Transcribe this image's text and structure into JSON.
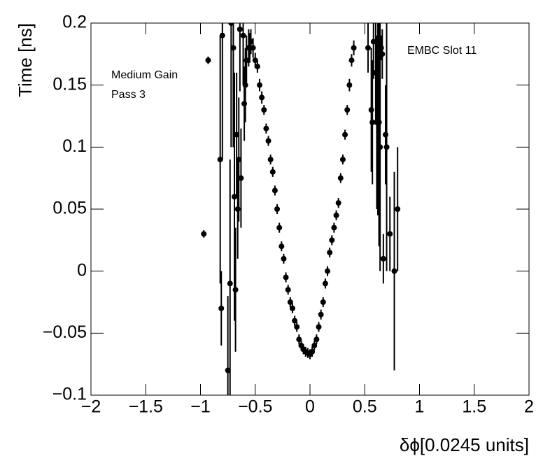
{
  "chart_data": {
    "type": "scatter",
    "x_label": "δϕ[0.0245 units]",
    "y_label": "Time [ns]",
    "annotations": [
      "Medium Gain",
      "Pass 3",
      "EMBC Slot 11"
    ],
    "xlim": [
      -2,
      2
    ],
    "ylim": [
      -0.1,
      0.2
    ],
    "xticks": [
      {
        "value": -2,
        "label": "−2"
      },
      {
        "value": -1.5,
        "label": "−1.5"
      },
      {
        "value": -1,
        "label": "−1"
      },
      {
        "value": -0.5,
        "label": "−0.5"
      },
      0,
      0.5,
      1,
      1.5,
      2
    ],
    "yticks": [
      {
        "value": -0.1,
        "label": "−0.1"
      },
      {
        "value": -0.05,
        "label": "−0.05"
      },
      0,
      0.05,
      0.1,
      0.15,
      0.2
    ],
    "grid": false,
    "series": [
      {
        "color": "#000000",
        "x": [
          -0.97,
          -0.93,
          -0.82,
          -0.81,
          -0.8,
          -0.75,
          -0.73,
          -0.72,
          -0.7,
          -0.69,
          -0.68,
          -0.67,
          -0.66,
          -0.65,
          -0.64,
          -0.63,
          -0.61,
          -0.6,
          -0.59,
          -0.58,
          -0.56,
          -0.55,
          -0.54,
          -0.52,
          -0.5,
          -0.48,
          -0.46,
          -0.44,
          -0.42,
          -0.4,
          -0.38,
          -0.36,
          -0.34,
          -0.32,
          -0.3,
          -0.28,
          -0.26,
          -0.24,
          -0.22,
          -0.2,
          -0.18,
          -0.16,
          -0.14,
          -0.12,
          -0.1,
          -0.08,
          -0.06,
          -0.04,
          -0.02,
          0,
          0.02,
          0.04,
          0.06,
          0.08,
          0.1,
          0.12,
          0.14,
          0.16,
          0.18,
          0.2,
          0.22,
          0.24,
          0.26,
          0.28,
          0.3,
          0.32,
          0.34,
          0.36,
          0.38,
          0.4,
          0.53,
          0.56,
          0.57,
          0.58,
          0.6,
          0.61,
          0.62,
          0.63,
          0.64,
          0.65,
          0.66,
          0.67,
          0.69,
          0.7,
          0.73,
          0.77,
          0.8
        ],
        "values": [
          0.03,
          0.17,
          0.09,
          -0.03,
          0.19,
          -0.08,
          -0.01,
          0.2,
          0.18,
          0.06,
          -0.015,
          0.11,
          0.05,
          0.09,
          0.195,
          0.075,
          0.19,
          0.135,
          0.15,
          0.17,
          0.18,
          0.18,
          0.185,
          0.18,
          0.17,
          0.165,
          0.15,
          0.14,
          0.13,
          0.115,
          0.105,
          0.09,
          0.08,
          0.065,
          0.05,
          0.035,
          0.02,
          0.01,
          -0.005,
          -0.015,
          -0.025,
          -0.03,
          -0.04,
          -0.045,
          -0.055,
          -0.06,
          -0.063,
          -0.065,
          -0.066,
          -0.067,
          -0.065,
          -0.06,
          -0.055,
          -0.045,
          -0.035,
          -0.025,
          -0.01,
          0,
          0.015,
          0.025,
          0.035,
          0.045,
          0.055,
          0.075,
          0.09,
          0.11,
          0.13,
          0.15,
          0.17,
          0.18,
          0.18,
          0.13,
          0.12,
          0.185,
          0.16,
          0.12,
          0.125,
          0.12,
          0.1,
          0.18,
          0.175,
          0.01,
          0.11,
          0.1,
          0.03,
          0,
          0.05
        ],
        "errors": [
          0.003,
          0.003,
          0.1,
          0.03,
          0.1,
          0.06,
          0.1,
          0.1,
          0.08,
          0.1,
          0.05,
          0.05,
          0.04,
          0.05,
          0.05,
          0.04,
          0.04,
          0.03,
          0.03,
          0.02,
          0.015,
          0.012,
          0.01,
          0.008,
          0.006,
          0.005,
          0.005,
          0.005,
          0.004,
          0.004,
          0.004,
          0.004,
          0.004,
          0.004,
          0.004,
          0.004,
          0.004,
          0.004,
          0.004,
          0.004,
          0.004,
          0.004,
          0.004,
          0.004,
          0.004,
          0.004,
          0.004,
          0.004,
          0.004,
          0.004,
          0.004,
          0.004,
          0.004,
          0.004,
          0.004,
          0.004,
          0.004,
          0.004,
          0.004,
          0.004,
          0.004,
          0.004,
          0.004,
          0.004,
          0.004,
          0.004,
          0.004,
          0.005,
          0.005,
          0.006,
          0.02,
          0.05,
          0.05,
          0.03,
          0.04,
          0.07,
          0.08,
          0.1,
          0.1,
          0.01,
          0.02,
          0.02,
          0.04,
          0.1,
          0.03,
          0.08,
          0.05
        ]
      }
    ]
  }
}
